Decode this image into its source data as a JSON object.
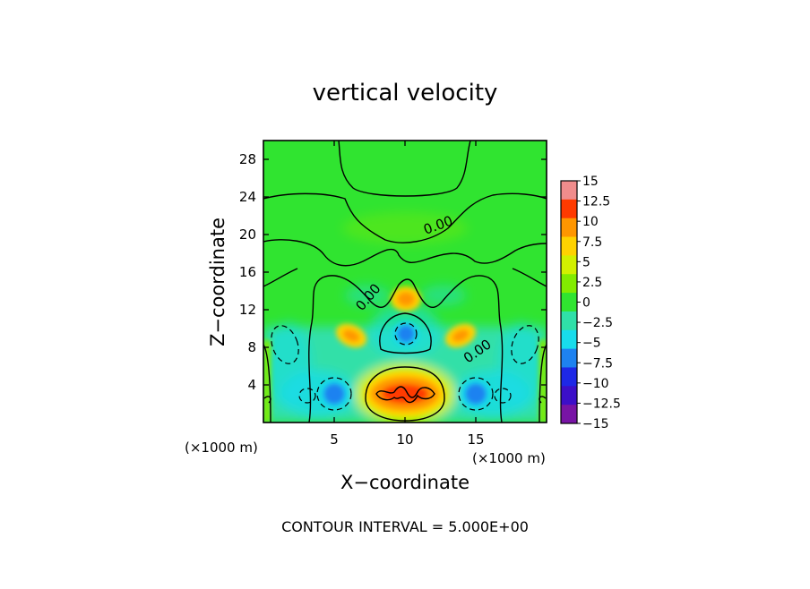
{
  "chart_data": {
    "type": "heatmap",
    "title": "vertical velocity",
    "xlabel": "X−coordinate",
    "ylabel": "Z−coordinate",
    "x_unit_label": "(×1000 m)",
    "z_unit_label": "(×1000 m)",
    "xlim": [
      0,
      20
    ],
    "ylim": [
      0,
      30
    ],
    "x_ticks": [
      5,
      10,
      15
    ],
    "y_ticks": [
      4,
      8,
      12,
      16,
      20,
      24,
      28
    ],
    "colorbar": {
      "range": [
        -15,
        15
      ],
      "ticks": [
        "15",
        "12.5",
        "10",
        "7.5",
        "5",
        "2.5",
        "0",
        "−2.5",
        "−5",
        "−7.5",
        "−10",
        "−12.5",
        "−15"
      ],
      "colors": [
        "#f08c8c",
        "#ff3a00",
        "#ff9600",
        "#ffd200",
        "#d2f000",
        "#82eb00",
        "#30e430",
        "#30e0a8",
        "#18dcec",
        "#1e82f0",
        "#1e28e6",
        "#3c0fc8",
        "#7814a5"
      ]
    },
    "contour_labels": [
      "0.00",
      "0.00",
      "0.00"
    ],
    "features": [
      {
        "x": 10,
        "z": 2.8,
        "w": 12.5,
        "kind": "updraft"
      },
      {
        "x": 10,
        "z": 13,
        "w": 6,
        "kind": "updraft"
      },
      {
        "x": 6.2,
        "z": 9.5,
        "w": 6,
        "kind": "updraft"
      },
      {
        "x": 13.8,
        "z": 9.5,
        "w": 6,
        "kind": "updraft"
      },
      {
        "x": 5,
        "z": 3,
        "w": -7,
        "kind": "downdraft"
      },
      {
        "x": 15,
        "z": 3,
        "w": -7,
        "kind": "downdraft"
      },
      {
        "x": 10,
        "z": 9.5,
        "w": -6.5,
        "kind": "downdraft"
      }
    ],
    "footer": "CONTOUR INTERVAL = 5.000E+00"
  }
}
